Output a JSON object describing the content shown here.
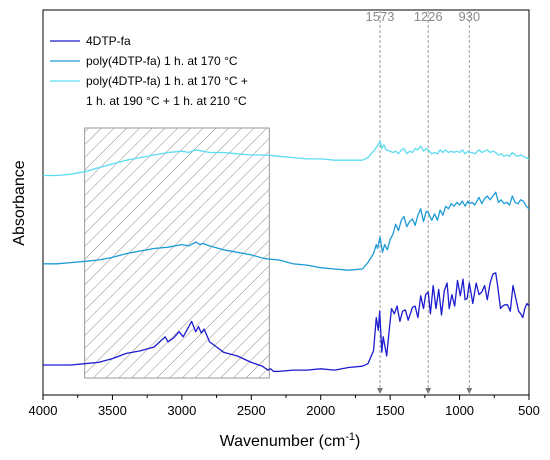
{
  "chart_data": {
    "type": "line",
    "xlabel": "Wavenumber (cm",
    "xlabel_sup": "-1",
    "xlabel_end": ")",
    "ylabel": "Absorbance",
    "xlim": [
      4000,
      500
    ],
    "x_reversed": true,
    "xticks": [
      4000,
      3500,
      3000,
      2500,
      2000,
      1500,
      1000,
      500
    ],
    "legend_position": "top-left",
    "grid": false,
    "peak_markers": [
      {
        "label": "1573",
        "x": 1573
      },
      {
        "label": "1226",
        "x": 1226
      },
      {
        "label": "930",
        "x": 930
      }
    ],
    "shaded_region": {
      "x": [
        3700,
        2370
      ],
      "pattern": "hatched"
    },
    "series": [
      {
        "name": "4DTP-fa",
        "color": "#1c1ccf",
        "points": [
          [
            4000,
            0.18
          ],
          [
            3900,
            0.18
          ],
          [
            3800,
            0.18
          ],
          [
            3700,
            0.19
          ],
          [
            3600,
            0.2
          ],
          [
            3500,
            0.23
          ],
          [
            3400,
            0.27
          ],
          [
            3300,
            0.29
          ],
          [
            3200,
            0.32
          ],
          [
            3150,
            0.37
          ],
          [
            3120,
            0.4
          ],
          [
            3100,
            0.36
          ],
          [
            3060,
            0.39
          ],
          [
            3020,
            0.44
          ],
          [
            2990,
            0.4
          ],
          [
            2960,
            0.46
          ],
          [
            2930,
            0.52
          ],
          [
            2900,
            0.44
          ],
          [
            2880,
            0.48
          ],
          [
            2860,
            0.43
          ],
          [
            2840,
            0.46
          ],
          [
            2800,
            0.36
          ],
          [
            2750,
            0.32
          ],
          [
            2700,
            0.28
          ],
          [
            2600,
            0.25
          ],
          [
            2500,
            0.2
          ],
          [
            2420,
            0.17
          ],
          [
            2380,
            0.14
          ],
          [
            2360,
            0.15
          ],
          [
            2340,
            0.13
          ],
          [
            2300,
            0.13
          ],
          [
            2200,
            0.14
          ],
          [
            2100,
            0.14
          ],
          [
            2000,
            0.15
          ],
          [
            1900,
            0.14
          ],
          [
            1800,
            0.16
          ],
          [
            1700,
            0.17
          ],
          [
            1660,
            0.19
          ],
          [
            1620,
            0.29
          ],
          [
            1600,
            0.55
          ],
          [
            1585,
            0.45
          ],
          [
            1575,
            0.6
          ],
          [
            1560,
            0.28
          ],
          [
            1550,
            0.4
          ],
          [
            1525,
            0.25
          ],
          [
            1510,
            0.42
          ],
          [
            1490,
            0.62
          ],
          [
            1470,
            0.58
          ],
          [
            1450,
            0.64
          ],
          [
            1430,
            0.52
          ],
          [
            1410,
            0.6
          ],
          [
            1390,
            0.61
          ],
          [
            1370,
            0.53
          ],
          [
            1340,
            0.63
          ],
          [
            1320,
            0.64
          ],
          [
            1300,
            0.55
          ],
          [
            1280,
            0.72
          ],
          [
            1260,
            0.62
          ],
          [
            1245,
            0.73
          ],
          [
            1226,
            0.75
          ],
          [
            1210,
            0.58
          ],
          [
            1190,
            0.8
          ],
          [
            1170,
            0.62
          ],
          [
            1150,
            0.77
          ],
          [
            1130,
            0.57
          ],
          [
            1110,
            0.76
          ],
          [
            1090,
            0.82
          ],
          [
            1075,
            0.62
          ],
          [
            1055,
            0.73
          ],
          [
            1035,
            0.64
          ],
          [
            1015,
            0.84
          ],
          [
            995,
            0.72
          ],
          [
            975,
            0.85
          ],
          [
            960,
            0.69
          ],
          [
            945,
            0.7
          ],
          [
            930,
            0.82
          ],
          [
            905,
            0.66
          ],
          [
            880,
            0.82
          ],
          [
            860,
            0.73
          ],
          [
            840,
            0.75
          ],
          [
            820,
            0.8
          ],
          [
            800,
            0.69
          ],
          [
            780,
            0.82
          ],
          [
            760,
            0.89
          ],
          [
            740,
            0.9
          ],
          [
            725,
            0.79
          ],
          [
            705,
            0.62
          ],
          [
            690,
            0.64
          ],
          [
            675,
            0.65
          ],
          [
            655,
            0.65
          ],
          [
            635,
            0.6
          ],
          [
            615,
            0.8
          ],
          [
            595,
            0.7
          ],
          [
            575,
            0.6
          ],
          [
            560,
            0.58
          ],
          [
            545,
            0.55
          ],
          [
            530,
            0.62
          ],
          [
            515,
            0.66
          ],
          [
            500,
            0.64
          ]
        ]
      },
      {
        "name": "poly(4DTP-fa) 1 h. at 170 °C",
        "color": "#1e9bd7",
        "points": [
          [
            4000,
            0.97
          ],
          [
            3900,
            0.97
          ],
          [
            3800,
            0.98
          ],
          [
            3700,
            0.99
          ],
          [
            3600,
            1.0
          ],
          [
            3500,
            1.02
          ],
          [
            3400,
            1.05
          ],
          [
            3300,
            1.07
          ],
          [
            3200,
            1.09
          ],
          [
            3100,
            1.1
          ],
          [
            3000,
            1.12
          ],
          [
            2950,
            1.11
          ],
          [
            2900,
            1.14
          ],
          [
            2870,
            1.12
          ],
          [
            2850,
            1.13
          ],
          [
            2800,
            1.11
          ],
          [
            2700,
            1.08
          ],
          [
            2600,
            1.06
          ],
          [
            2500,
            1.04
          ],
          [
            2400,
            1.01
          ],
          [
            2300,
            1.0
          ],
          [
            2200,
            0.97
          ],
          [
            2100,
            0.96
          ],
          [
            2000,
            0.94
          ],
          [
            1900,
            0.93
          ],
          [
            1800,
            0.92
          ],
          [
            1700,
            0.93
          ],
          [
            1660,
            0.98
          ],
          [
            1620,
            1.05
          ],
          [
            1600,
            1.12
          ],
          [
            1590,
            1.09
          ],
          [
            1573,
            1.18
          ],
          [
            1555,
            1.06
          ],
          [
            1540,
            1.12
          ],
          [
            1520,
            1.08
          ],
          [
            1500,
            1.16
          ],
          [
            1480,
            1.2
          ],
          [
            1460,
            1.28
          ],
          [
            1440,
            1.23
          ],
          [
            1420,
            1.31
          ],
          [
            1400,
            1.34
          ],
          [
            1380,
            1.26
          ],
          [
            1360,
            1.3
          ],
          [
            1340,
            1.32
          ],
          [
            1320,
            1.27
          ],
          [
            1300,
            1.35
          ],
          [
            1280,
            1.4
          ],
          [
            1260,
            1.3
          ],
          [
            1240,
            1.38
          ],
          [
            1226,
            1.37
          ],
          [
            1200,
            1.31
          ],
          [
            1180,
            1.36
          ],
          [
            1160,
            1.31
          ],
          [
            1140,
            1.39
          ],
          [
            1120,
            1.35
          ],
          [
            1100,
            1.42
          ],
          [
            1080,
            1.4
          ],
          [
            1060,
            1.44
          ],
          [
            1040,
            1.42
          ],
          [
            1020,
            1.45
          ],
          [
            1000,
            1.43
          ],
          [
            980,
            1.46
          ],
          [
            960,
            1.42
          ],
          [
            940,
            1.46
          ],
          [
            930,
            1.44
          ],
          [
            910,
            1.45
          ],
          [
            890,
            1.43
          ],
          [
            860,
            1.49
          ],
          [
            840,
            1.44
          ],
          [
            820,
            1.48
          ],
          [
            800,
            1.5
          ],
          [
            780,
            1.47
          ],
          [
            760,
            1.5
          ],
          [
            740,
            1.53
          ],
          [
            720,
            1.45
          ],
          [
            700,
            1.47
          ],
          [
            680,
            1.44
          ],
          [
            660,
            1.45
          ],
          [
            640,
            1.43
          ],
          [
            620,
            1.5
          ],
          [
            600,
            1.45
          ],
          [
            580,
            1.44
          ],
          [
            560,
            1.47
          ],
          [
            540,
            1.46
          ],
          [
            520,
            1.42
          ],
          [
            500,
            1.4
          ]
        ]
      },
      {
        "name": "poly(4DTP-fa) 1 h. at 170 °C + 1 h. at 190 °C + 1 h. at 210 °C",
        "color": "#5cdcf2",
        "points": [
          [
            4000,
            1.66
          ],
          [
            3900,
            1.66
          ],
          [
            3800,
            1.67
          ],
          [
            3700,
            1.69
          ],
          [
            3600,
            1.72
          ],
          [
            3500,
            1.75
          ],
          [
            3400,
            1.78
          ],
          [
            3300,
            1.8
          ],
          [
            3200,
            1.82
          ],
          [
            3100,
            1.84
          ],
          [
            3000,
            1.85
          ],
          [
            2950,
            1.84
          ],
          [
            2900,
            1.86
          ],
          [
            2850,
            1.85
          ],
          [
            2800,
            1.84
          ],
          [
            2700,
            1.84
          ],
          [
            2600,
            1.83
          ],
          [
            2500,
            1.82
          ],
          [
            2400,
            1.82
          ],
          [
            2300,
            1.81
          ],
          [
            2200,
            1.8
          ],
          [
            2100,
            1.79
          ],
          [
            2000,
            1.79
          ],
          [
            1900,
            1.78
          ],
          [
            1800,
            1.78
          ],
          [
            1700,
            1.78
          ],
          [
            1660,
            1.8
          ],
          [
            1620,
            1.85
          ],
          [
            1600,
            1.88
          ],
          [
            1585,
            1.9
          ],
          [
            1573,
            1.93
          ],
          [
            1560,
            1.87
          ],
          [
            1545,
            1.9
          ],
          [
            1530,
            1.86
          ],
          [
            1500,
            1.85
          ],
          [
            1480,
            1.84
          ],
          [
            1460,
            1.85
          ],
          [
            1440,
            1.83
          ],
          [
            1420,
            1.86
          ],
          [
            1400,
            1.87
          ],
          [
            1380,
            1.83
          ],
          [
            1360,
            1.85
          ],
          [
            1340,
            1.84
          ],
          [
            1320,
            1.87
          ],
          [
            1300,
            1.86
          ],
          [
            1280,
            1.89
          ],
          [
            1260,
            1.85
          ],
          [
            1240,
            1.87
          ],
          [
            1226,
            1.86
          ],
          [
            1200,
            1.83
          ],
          [
            1180,
            1.84
          ],
          [
            1160,
            1.83
          ],
          [
            1140,
            1.86
          ],
          [
            1120,
            1.84
          ],
          [
            1100,
            1.86
          ],
          [
            1080,
            1.84
          ],
          [
            1060,
            1.85
          ],
          [
            1040,
            1.84
          ],
          [
            1020,
            1.85
          ],
          [
            1000,
            1.84
          ],
          [
            980,
            1.86
          ],
          [
            960,
            1.83
          ],
          [
            940,
            1.85
          ],
          [
            930,
            1.84
          ],
          [
            910,
            1.84
          ],
          [
            890,
            1.83
          ],
          [
            860,
            1.86
          ],
          [
            840,
            1.84
          ],
          [
            820,
            1.85
          ],
          [
            800,
            1.86
          ],
          [
            780,
            1.84
          ],
          [
            760,
            1.85
          ],
          [
            740,
            1.84
          ],
          [
            720,
            1.82
          ],
          [
            700,
            1.83
          ],
          [
            680,
            1.81
          ],
          [
            660,
            1.82
          ],
          [
            640,
            1.81
          ],
          [
            620,
            1.84
          ],
          [
            600,
            1.82
          ],
          [
            580,
            1.81
          ],
          [
            560,
            1.82
          ],
          [
            540,
            1.81
          ],
          [
            520,
            1.8
          ],
          [
            500,
            1.79
          ]
        ]
      }
    ]
  }
}
